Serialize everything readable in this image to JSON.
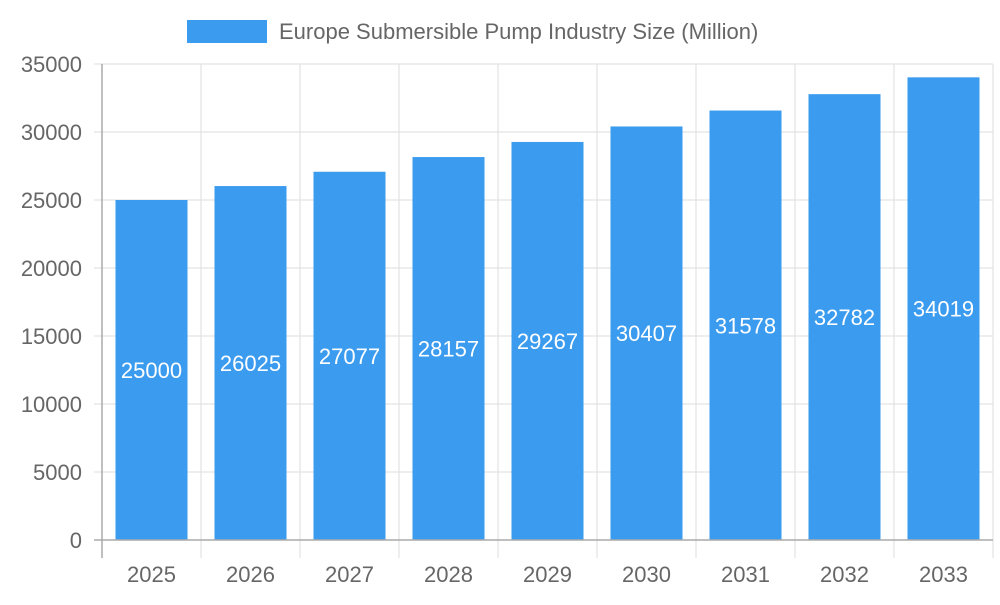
{
  "chart_data": {
    "type": "bar",
    "title": "",
    "xlabel": "",
    "ylabel": "",
    "categories": [
      "2025",
      "2026",
      "2027",
      "2028",
      "2029",
      "2030",
      "2031",
      "2032",
      "2033"
    ],
    "series": [
      {
        "name": "Europe Submersible Pump Industry Size (Million)",
        "values": [
          25000,
          26025,
          27077,
          28157,
          29267,
          30407,
          31578,
          32782,
          34019
        ]
      }
    ],
    "ylim": [
      0,
      35000
    ],
    "yticks": [
      0,
      5000,
      10000,
      15000,
      20000,
      25000,
      30000,
      35000
    ],
    "grid": true,
    "legend_position": "top",
    "data_labels": true,
    "colors": {
      "bar": "#3a9bef",
      "text": "#666666",
      "grid": "#dddddd",
      "axis": "#aaaaaa",
      "label": "#ffffff"
    }
  }
}
